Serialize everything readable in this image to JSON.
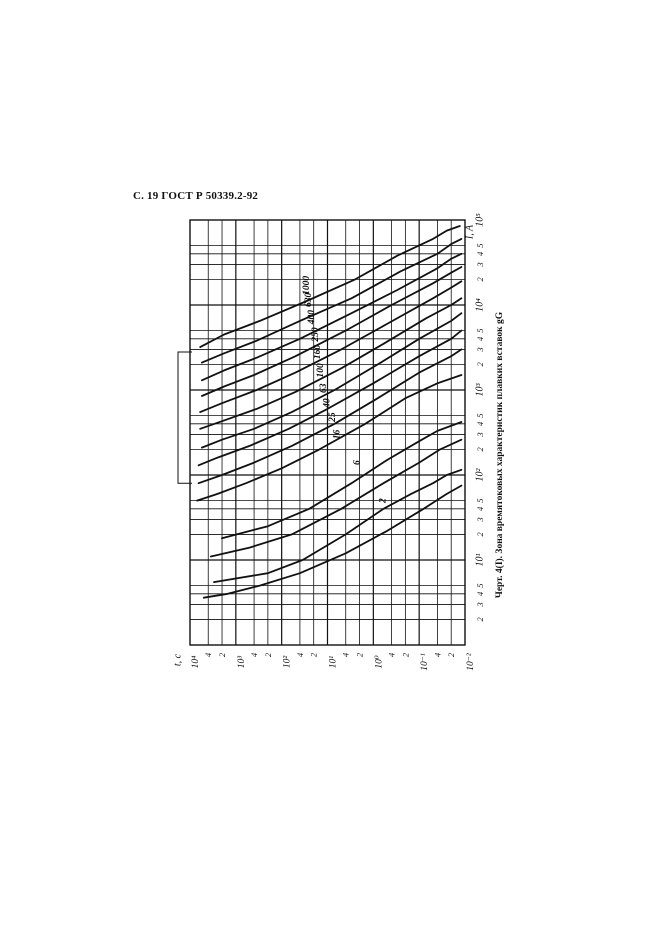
{
  "header": {
    "text": "С. 19 ГОСТ Р 50339.2-92"
  },
  "caption": {
    "text": "Черт. 4(I). Зона времятоковых характеристик плавких вставок gG"
  },
  "chart_data": {
    "type": "line",
    "title": "",
    "xlabel": "I, A",
    "ylabel": "t, c",
    "x_scale": "log",
    "y_scale": "log",
    "xlim": [
      1,
      100000
    ],
    "ylim": [
      0.01,
      10000
    ],
    "grid": true,
    "x_major_labels": [
      {
        "v": 10,
        "t": "10¹"
      },
      {
        "v": 100,
        "t": "10²"
      },
      {
        "v": 1000,
        "t": "10³"
      },
      {
        "v": 10000,
        "t": "10⁴"
      },
      {
        "v": 100000,
        "t": "10⁵"
      }
    ],
    "x_minor_labels": [
      {
        "v": 2,
        "t": "2"
      },
      {
        "v": 3,
        "t": "3"
      },
      {
        "v": 4,
        "t": "4"
      },
      {
        "v": 5,
        "t": "5"
      },
      {
        "v": 20,
        "t": "2"
      },
      {
        "v": 30,
        "t": "3"
      },
      {
        "v": 40,
        "t": "4"
      },
      {
        "v": 50,
        "t": "5"
      },
      {
        "v": 200,
        "t": "2"
      },
      {
        "v": 300,
        "t": "3"
      },
      {
        "v": 400,
        "t": "4"
      },
      {
        "v": 500,
        "t": "5"
      },
      {
        "v": 2000,
        "t": "2"
      },
      {
        "v": 3000,
        "t": "3"
      },
      {
        "v": 4000,
        "t": "4"
      },
      {
        "v": 5000,
        "t": "5"
      },
      {
        "v": 20000,
        "t": "2"
      },
      {
        "v": 30000,
        "t": "3"
      },
      {
        "v": 40000,
        "t": "4"
      },
      {
        "v": 50000,
        "t": "5"
      }
    ],
    "y_major_labels": [
      {
        "v": 10000,
        "t": "10⁴"
      },
      {
        "v": 1000,
        "t": "10³"
      },
      {
        "v": 100,
        "t": "10²"
      },
      {
        "v": 10,
        "t": "10¹"
      },
      {
        "v": 1,
        "t": "10⁰"
      },
      {
        "v": 0.1,
        "t": "10⁻¹"
      },
      {
        "v": 0.01,
        "t": "10⁻²"
      }
    ],
    "y_minor_labels": [
      {
        "v": 4000,
        "t": "4"
      },
      {
        "v": 2000,
        "t": "2"
      },
      {
        "v": 400,
        "t": "4"
      },
      {
        "v": 200,
        "t": "2"
      },
      {
        "v": 40,
        "t": "4"
      },
      {
        "v": 20,
        "t": "2"
      },
      {
        "v": 4,
        "t": "4"
      },
      {
        "v": 2,
        "t": "2"
      },
      {
        "v": 0.4,
        "t": "4"
      },
      {
        "v": 0.2,
        "t": "2"
      },
      {
        "v": 0.04,
        "t": "4"
      },
      {
        "v": 0.02,
        "t": "2"
      }
    ],
    "series": [
      {
        "name": "2",
        "upper": [
          [
            5.5,
            3000
          ],
          [
            7,
            200
          ],
          [
            10,
            35
          ],
          [
            20,
            4
          ],
          [
            40,
            0.6
          ],
          [
            60,
            0.15
          ],
          [
            80,
            0.05
          ],
          [
            100,
            0.025
          ],
          [
            115,
            0.012
          ]
        ],
        "lower": [
          [
            3.6,
            5000
          ],
          [
            4,
            1500
          ],
          [
            5,
            300
          ],
          [
            7,
            40
          ],
          [
            12,
            4
          ],
          [
            22,
            0.5
          ],
          [
            40,
            0.08
          ],
          [
            60,
            0.025
          ],
          [
            75,
            0.012
          ]
        ]
      },
      {
        "name": "6",
        "upper": [
          [
            18,
            2000
          ],
          [
            25,
            200
          ],
          [
            40,
            25
          ],
          [
            80,
            3
          ],
          [
            150,
            0.5
          ],
          [
            250,
            0.1
          ],
          [
            330,
            0.04
          ],
          [
            420,
            0.012
          ]
        ],
        "lower": [
          [
            11,
            3500
          ],
          [
            14,
            500
          ],
          [
            20,
            60
          ],
          [
            40,
            5
          ],
          [
            80,
            0.6
          ],
          [
            140,
            0.1
          ],
          [
            200,
            0.035
          ],
          [
            260,
            0.012
          ]
        ]
      },
      {
        "name": "16",
        "upper": [
          [
            50,
            7000
          ],
          [
            60,
            2500
          ],
          [
            80,
            600
          ],
          [
            120,
            100
          ],
          [
            200,
            15
          ],
          [
            400,
            1.5
          ],
          [
            800,
            0.2
          ],
          [
            1200,
            0.04
          ],
          [
            1500,
            0.012
          ]
        ]
      },
      {
        "name": "25",
        "upper": [
          [
            80,
            6500
          ],
          [
            100,
            2000
          ],
          [
            140,
            400
          ],
          [
            220,
            60
          ],
          [
            400,
            7
          ],
          [
            800,
            0.8
          ],
          [
            1600,
            0.1
          ],
          [
            2500,
            0.02
          ],
          [
            3000,
            0.012
          ]
        ]
      },
      {
        "name": "40",
        "upper": [
          [
            130,
            6500
          ],
          [
            160,
            2500
          ],
          [
            220,
            500
          ],
          [
            350,
            70
          ],
          [
            600,
            10
          ],
          [
            1200,
            1
          ],
          [
            2500,
            0.1
          ],
          [
            4000,
            0.02
          ],
          [
            5000,
            0.012
          ]
        ]
      },
      {
        "name": "63",
        "upper": [
          [
            210,
            5500
          ],
          [
            260,
            2000
          ],
          [
            350,
            400
          ],
          [
            550,
            60
          ],
          [
            1000,
            7
          ],
          [
            2000,
            0.8
          ],
          [
            4000,
            0.1
          ],
          [
            6500,
            0.02
          ],
          [
            8000,
            0.012
          ]
        ]
      },
      {
        "name": "100",
        "upper": [
          [
            350,
            6000
          ],
          [
            430,
            2000
          ],
          [
            600,
            350
          ],
          [
            950,
            50
          ],
          [
            1800,
            5
          ],
          [
            3500,
            0.6
          ],
          [
            7000,
            0.07
          ],
          [
            10000,
            0.02
          ],
          [
            12000,
            0.012
          ]
        ]
      },
      {
        "name": "160",
        "upper": [
          [
            550,
            6000
          ],
          [
            700,
            2000
          ],
          [
            1000,
            350
          ],
          [
            1600,
            50
          ],
          [
            3000,
            5
          ],
          [
            6000,
            0.5
          ],
          [
            12000,
            0.05
          ],
          [
            16000,
            0.02
          ],
          [
            19000,
            0.012
          ]
        ]
      },
      {
        "name": "250",
        "upper": [
          [
            850,
            5500
          ],
          [
            1100,
            1800
          ],
          [
            1500,
            400
          ],
          [
            2500,
            50
          ],
          [
            5000,
            4
          ],
          [
            10000,
            0.4
          ],
          [
            18000,
            0.05
          ],
          [
            24000,
            0.02
          ],
          [
            28000,
            0.012
          ]
        ]
      },
      {
        "name": "400",
        "upper": [
          [
            1300,
            5500
          ],
          [
            1700,
            1800
          ],
          [
            2400,
            350
          ],
          [
            4000,
            40
          ],
          [
            8000,
            3
          ],
          [
            15000,
            0.3
          ],
          [
            27000,
            0.04
          ],
          [
            35000,
            0.02
          ],
          [
            40000,
            0.012
          ]
        ]
      },
      {
        "name": "630",
        "upper": [
          [
            2100,
            5500
          ],
          [
            2700,
            1800
          ],
          [
            3800,
            350
          ],
          [
            6500,
            40
          ],
          [
            12000,
            3
          ],
          [
            25000,
            0.25
          ],
          [
            40000,
            0.04
          ],
          [
            52000,
            0.02
          ],
          [
            60000,
            0.012
          ]
        ]
      },
      {
        "name": "1000",
        "upper": [
          [
            3200,
            6000
          ],
          [
            4500,
            1800
          ],
          [
            6500,
            300
          ],
          [
            11000,
            30
          ],
          [
            20000,
            2.5
          ],
          [
            38000,
            0.3
          ],
          [
            60000,
            0.05
          ],
          [
            75000,
            0.025
          ],
          [
            85000,
            0.013
          ]
        ]
      }
    ]
  }
}
